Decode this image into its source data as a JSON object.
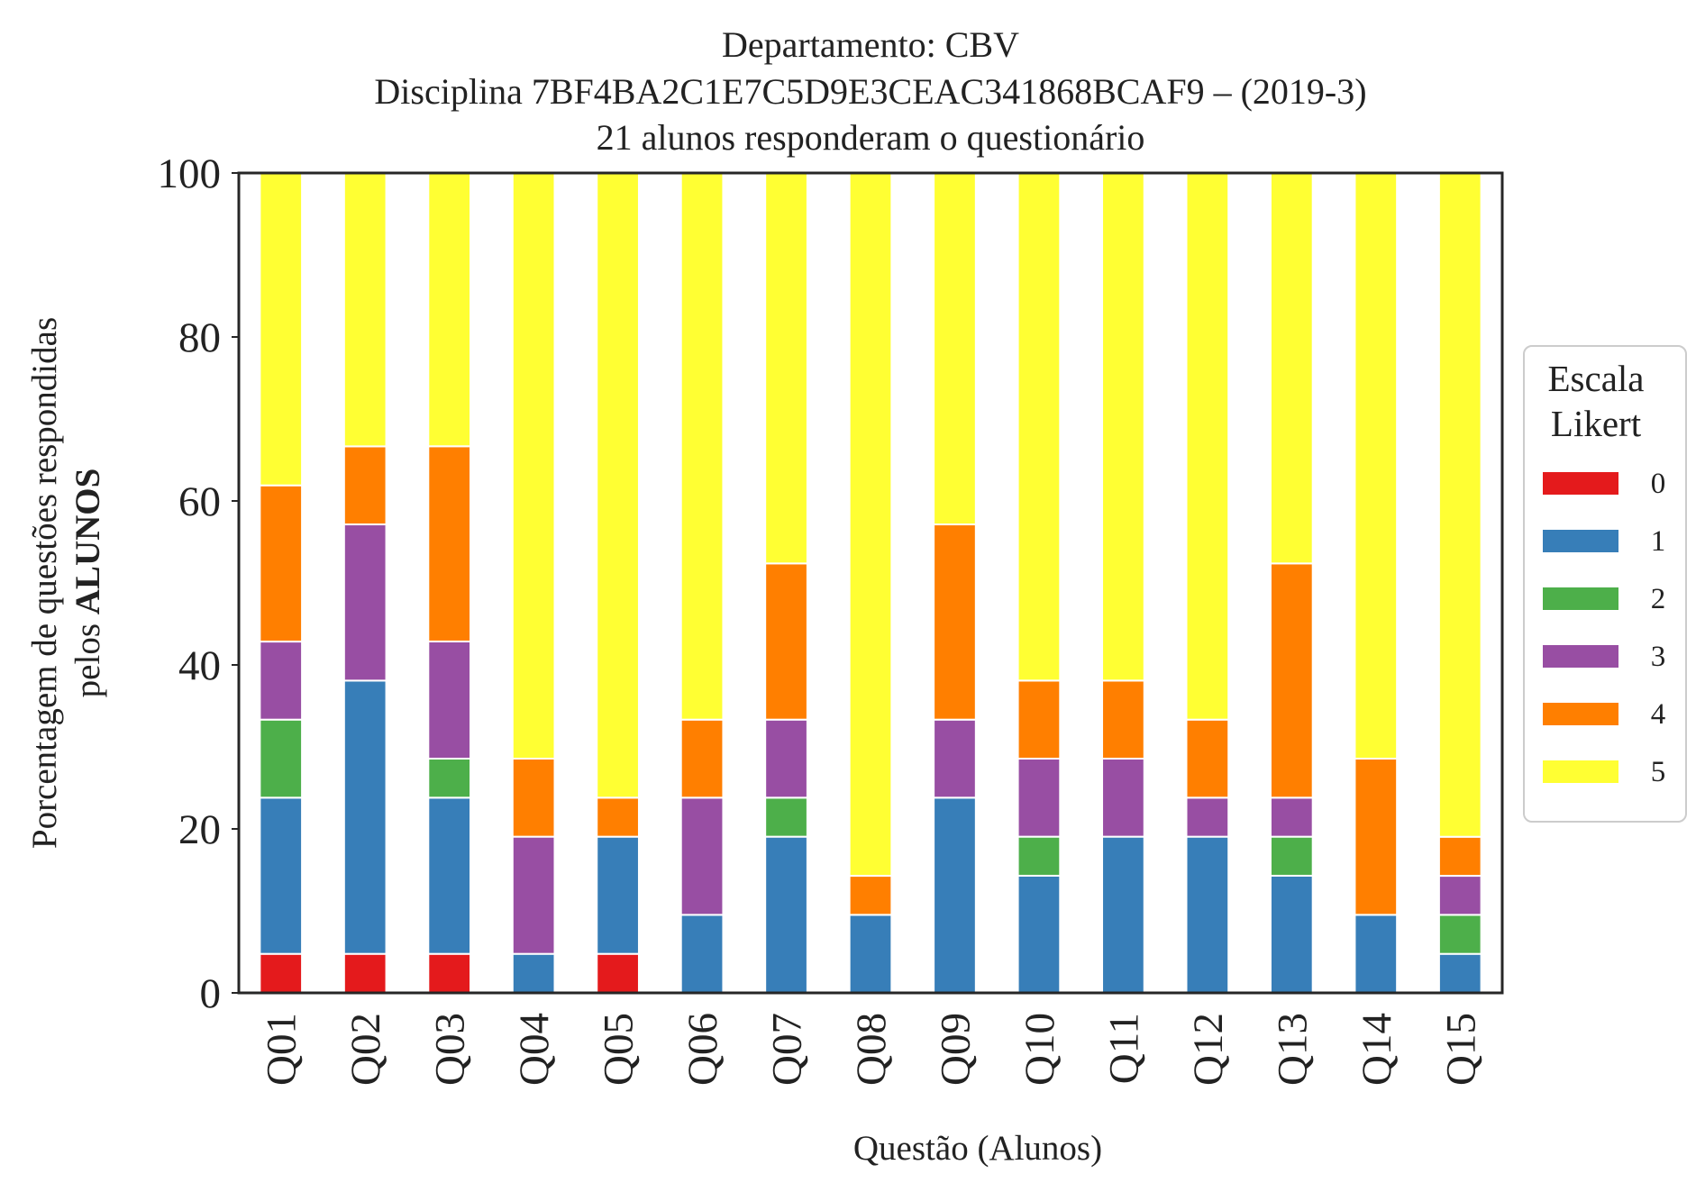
{
  "chart_data": {
    "type": "bar",
    "stacked": true,
    "title": "Departamento: CBV",
    "subtitle": "Disciplina 7BF4BA2C1E7C5D9E3CEAC341868BCAF9 – (2019-3)",
    "subtitle2": "21 alunos responderam o questionário",
    "xlabel": "Questão (Alunos)",
    "ylabel_line1": "Porcentagem de questões respondidas",
    "ylabel_line2_prefix": "pelos ",
    "ylabel_line2_bold": "ALUNOS",
    "ylim": [
      0,
      100
    ],
    "yticks": [
      "0",
      "20",
      "40",
      "60",
      "80",
      "100"
    ],
    "grid": false,
    "legend_title_line1": "Escala",
    "legend_title_line2": "Likert",
    "legend_position": "center-right",
    "categories": [
      "Q01",
      "Q02",
      "Q03",
      "Q04",
      "Q05",
      "Q06",
      "Q07",
      "Q08",
      "Q09",
      "Q10",
      "Q11",
      "Q12",
      "Q13",
      "Q14",
      "Q15"
    ],
    "series": [
      {
        "name": "0",
        "color": "#e41a1c",
        "values": [
          4.76,
          4.76,
          4.76,
          0,
          4.76,
          0,
          0,
          0,
          0,
          0,
          0,
          0,
          0,
          0,
          0
        ]
      },
      {
        "name": "1",
        "color": "#377eb8",
        "values": [
          19.05,
          33.33,
          19.05,
          4.76,
          14.29,
          9.52,
          19.05,
          9.52,
          23.81,
          14.29,
          19.05,
          19.05,
          14.29,
          9.52,
          4.76
        ]
      },
      {
        "name": "2",
        "color": "#4daf4a",
        "values": [
          9.52,
          0,
          4.76,
          0,
          0,
          0,
          4.76,
          0,
          0,
          4.76,
          0,
          0,
          4.76,
          0,
          4.76
        ]
      },
      {
        "name": "3",
        "color": "#984ea3",
        "values": [
          9.52,
          19.05,
          14.29,
          14.29,
          0,
          14.29,
          9.52,
          0,
          9.52,
          9.52,
          9.52,
          4.76,
          4.76,
          0,
          4.76
        ]
      },
      {
        "name": "4",
        "color": "#ff7f00",
        "values": [
          19.05,
          9.52,
          23.81,
          9.52,
          4.76,
          9.52,
          19.05,
          4.76,
          23.81,
          9.52,
          9.52,
          9.52,
          28.57,
          19.05,
          4.76
        ]
      },
      {
        "name": "5",
        "color": "#ffff33",
        "values": [
          38.1,
          33.33,
          33.33,
          71.43,
          76.19,
          66.67,
          47.62,
          85.71,
          42.86,
          61.9,
          61.9,
          66.67,
          47.62,
          71.43,
          80.95
        ]
      }
    ]
  }
}
